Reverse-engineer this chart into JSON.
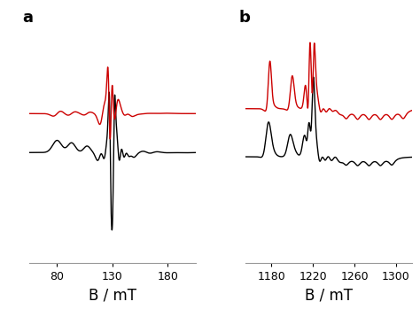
{
  "panel_a": {
    "label": "a",
    "xmin": 55,
    "xmax": 205,
    "xticks": [
      80,
      130,
      180
    ],
    "xlabel": "B / mT"
  },
  "panel_b": {
    "label": "b",
    "xmin": 1155,
    "xmax": 1315,
    "xticks": [
      1180,
      1220,
      1260,
      1300
    ],
    "xlabel": "B / mT"
  },
  "color_red": "#cc0000",
  "color_black": "#000000",
  "bg_color": "#ffffff",
  "linewidth_a": 1.0,
  "linewidth_b": 1.0,
  "label_fontsize": 12,
  "tick_fontsize": 9
}
